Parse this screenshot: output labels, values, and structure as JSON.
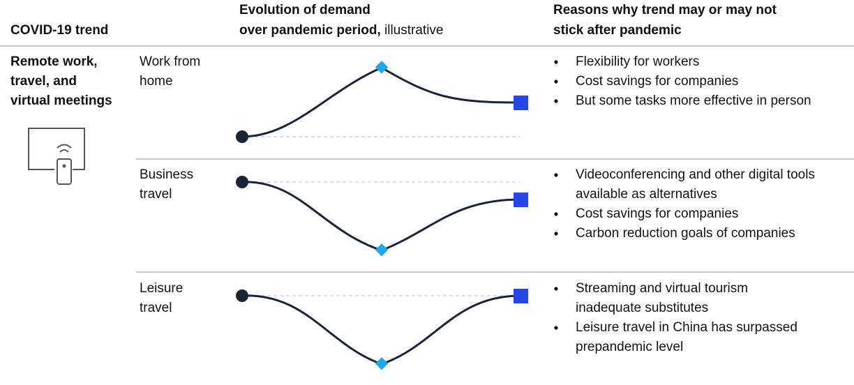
{
  "header": {
    "trend": "COVID-19 trend",
    "demand": [
      "Evolution of demand",
      "over pandemic period,"
    ],
    "demand_note": "illustrative",
    "reasons": [
      "Reasons why trend may or may not",
      "stick after  pandemic"
    ]
  },
  "trend": [
    "Remote work,",
    "travel, and",
    "virtual meetings"
  ],
  "rows": [
    {
      "label": [
        "Work from",
        "home"
      ],
      "reasons": [
        [
          "Flexibility for workers"
        ],
        [
          "Cost savings for companies"
        ],
        [
          "But some tasks more effective in person"
        ]
      ]
    },
    {
      "label": [
        "Business",
        "travel"
      ],
      "reasons": [
        [
          "Videoconferencing and other digital tools",
          "available as alternatives"
        ],
        [
          "Cost savings for companies"
        ],
        [
          "Carbon reduction goals of companies"
        ]
      ]
    },
    {
      "label": [
        "Leisure",
        "travel"
      ],
      "reasons": [
        [
          "Streaming and virtual tourism",
          "inadequate substitutes"
        ],
        [
          "Leisure travel in China has surpassed",
          "prepandemic level"
        ]
      ]
    }
  ]
}
